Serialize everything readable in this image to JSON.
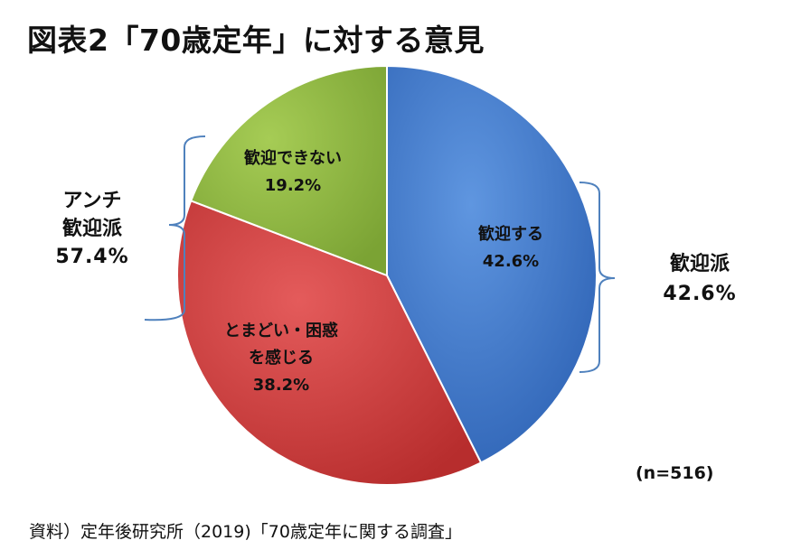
{
  "title": "図表2「70歳定年」に対する意見",
  "source": "資料）定年後研究所（2019)「70歳定年に関する調査」",
  "n_label": "(n=516)",
  "groups": {
    "right": {
      "label": "歓迎派",
      "value": "42.6%"
    },
    "left": {
      "label_line1": "アンチ",
      "label_line2": "歓迎派",
      "value": "57.4%"
    }
  },
  "chart_data": {
    "type": "pie",
    "title": "図表2「70歳定年」に対する意見",
    "slices": [
      {
        "label": "歓迎する",
        "value": 42.6,
        "value_text": "42.6%",
        "color": "#3b74c9"
      },
      {
        "label": "とまどい・困惑を感じる",
        "label_lines": [
          "とまどい・困惑",
          "を感じる"
        ],
        "value": 38.2,
        "value_text": "38.2%",
        "color": "#cf3b3b"
      },
      {
        "label": "歓迎できない",
        "value": 19.2,
        "value_text": "19.2%",
        "color": "#8fb83f"
      }
    ],
    "start_angle": "12 o'clock",
    "direction": "clockwise",
    "legend": "none"
  }
}
